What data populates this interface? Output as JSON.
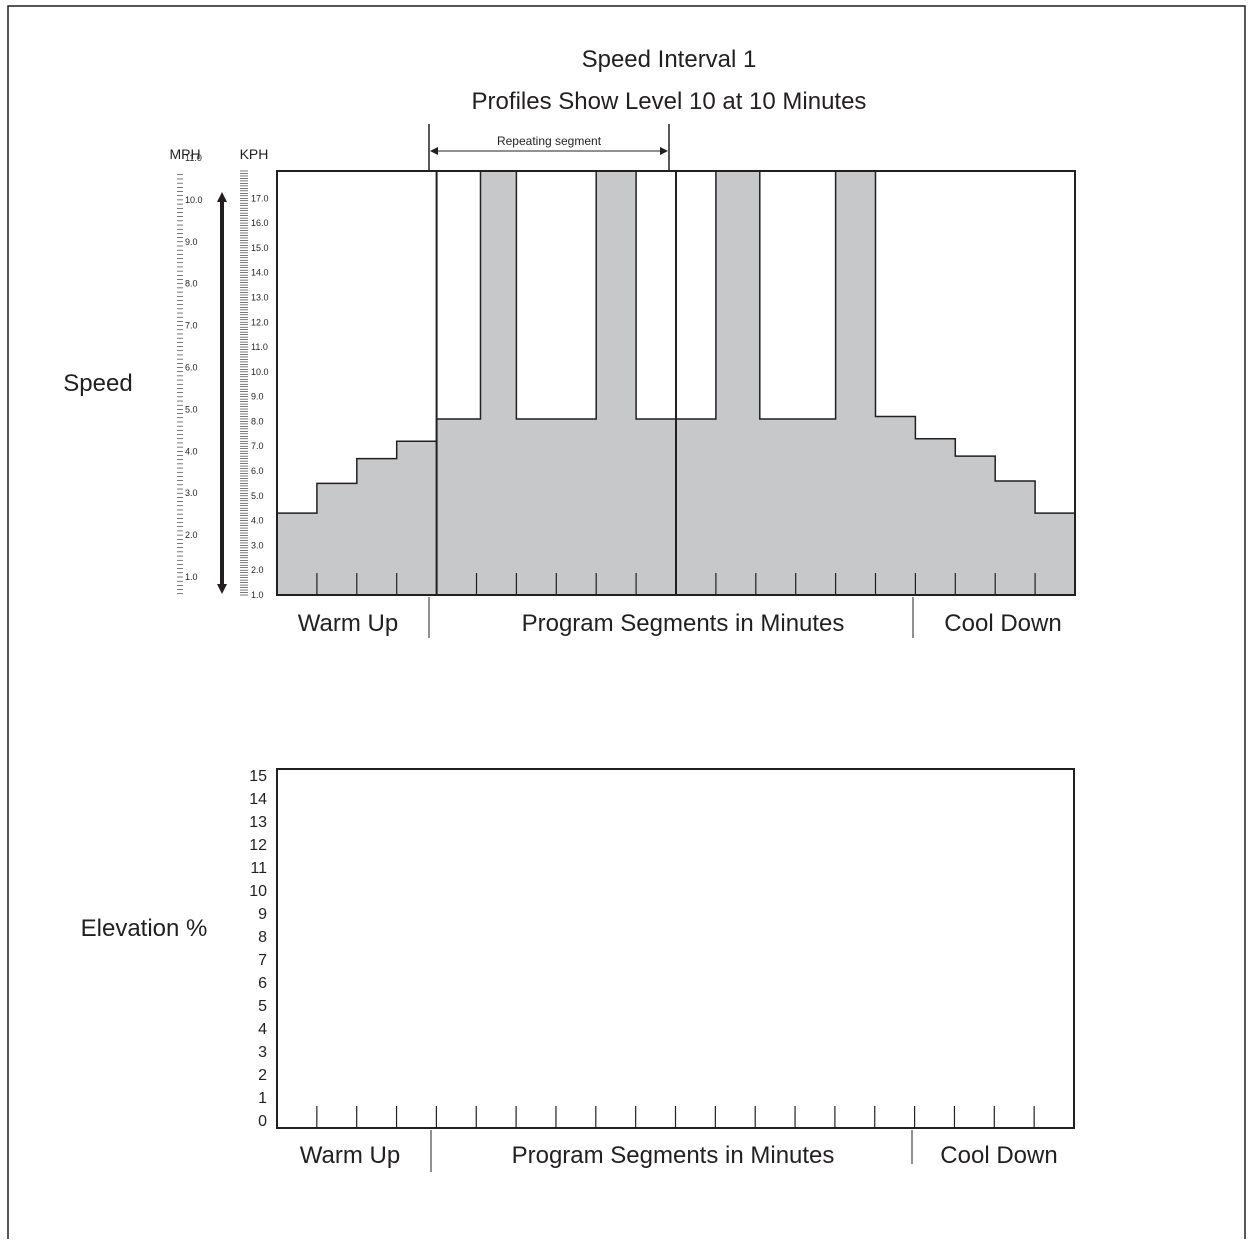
{
  "title": "Speed Interval 1",
  "subtitle": "Profiles Show Level 10 at 10 Minutes",
  "colors": {
    "fill": "#c7c8ca",
    "stroke": "#231f20",
    "background": "#ffffff"
  },
  "chart_data": [
    {
      "type": "area",
      "name": "speed-profile",
      "ylabel": "Speed",
      "unit_labels": {
        "mph": "MPH",
        "kph": "KPH"
      },
      "mph_ticks": [
        "1.0",
        "2.0",
        "3.0",
        "4.0",
        "5.0",
        "6.0",
        "7.0",
        "8.0",
        "9.0",
        "10.0",
        "11.0"
      ],
      "kph_ticks": [
        "1.0",
        "2.0",
        "3.0",
        "4.0",
        "5.0",
        "6.0",
        "7.0",
        "8.0",
        "9.0",
        "10.0",
        "11.0",
        "12.0",
        "13.0",
        "14.0",
        "15.0",
        "16.0",
        "17.0"
      ],
      "ylim_kph": [
        1.0,
        18.1
      ],
      "xlim_minutes": [
        0,
        20
      ],
      "repeating_segment_label": "Repeating segment",
      "repeating_segment_minutes": [
        4,
        10
      ],
      "section_labels": {
        "warmup": "Warm Up",
        "program": "Program Segments in Minutes",
        "cooldown": "Cool Down"
      },
      "section_dividers_minutes": [
        4,
        16
      ],
      "steps": [
        {
          "start": 0,
          "end": 1,
          "kph": 4.3
        },
        {
          "start": 1,
          "end": 2,
          "kph": 5.5
        },
        {
          "start": 2,
          "end": 3,
          "kph": 6.5
        },
        {
          "start": 3,
          "end": 4,
          "kph": 7.2
        },
        {
          "start": 4,
          "end": 5.1,
          "kph": 8.1
        },
        {
          "start": 5.1,
          "end": 6,
          "kph": 18.1
        },
        {
          "start": 6,
          "end": 8,
          "kph": 8.1
        },
        {
          "start": 8,
          "end": 9,
          "kph": 18.1
        },
        {
          "start": 9,
          "end": 11,
          "kph": 8.1
        },
        {
          "start": 11,
          "end": 12.1,
          "kph": 18.1
        },
        {
          "start": 12.1,
          "end": 14,
          "kph": 8.1
        },
        {
          "start": 14,
          "end": 15,
          "kph": 18.1
        },
        {
          "start": 15,
          "end": 16,
          "kph": 8.2
        },
        {
          "start": 16,
          "end": 17,
          "kph": 7.3
        },
        {
          "start": 17,
          "end": 18,
          "kph": 6.6
        },
        {
          "start": 18,
          "end": 19,
          "kph": 5.6
        },
        {
          "start": 19,
          "end": 20,
          "kph": 4.3
        }
      ]
    },
    {
      "type": "area",
      "name": "elevation-profile",
      "ylabel": "Elevation %",
      "ylim": [
        0,
        15
      ],
      "y_ticks": [
        "0",
        "1",
        "2",
        "3",
        "4",
        "5",
        "6",
        "7",
        "8",
        "9",
        "10",
        "11",
        "12",
        "13",
        "14",
        "15"
      ],
      "xlim_minutes": [
        0,
        20
      ],
      "section_labels": {
        "warmup": "Warm Up",
        "program": "Program Segments in Minutes",
        "cooldown": "Cool Down"
      },
      "section_dividers_minutes": [
        4,
        16
      ],
      "steps": []
    }
  ]
}
